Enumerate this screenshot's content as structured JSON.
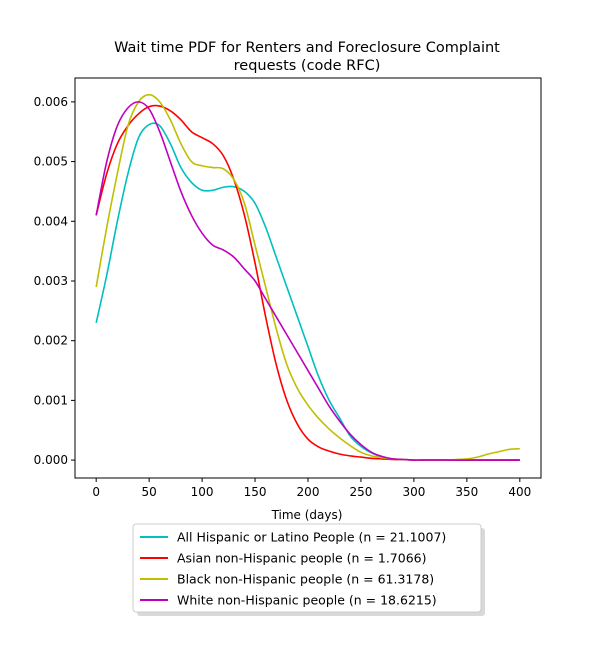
{
  "chart_data": {
    "type": "line",
    "title_line1": "Wait time PDF for Renters and Foreclosure Complaint",
    "title_line2": "requests (code RFC)",
    "xlabel": "Time (days)",
    "ylabel": "",
    "xlim": [
      -20,
      420
    ],
    "ylim": [
      -0.0003,
      0.0064
    ],
    "xticks": [
      0,
      50,
      100,
      150,
      200,
      250,
      300,
      350,
      400
    ],
    "yticks": [
      0.0,
      0.001,
      0.002,
      0.003,
      0.004,
      0.005,
      0.006
    ],
    "ytick_labels": [
      "0.000",
      "0.001",
      "0.002",
      "0.003",
      "0.004",
      "0.005",
      "0.006"
    ],
    "grid": false,
    "legend_position": "below plot",
    "x": [
      0,
      10,
      20,
      30,
      40,
      50,
      60,
      70,
      80,
      90,
      100,
      110,
      120,
      130,
      140,
      150,
      160,
      170,
      180,
      190,
      200,
      210,
      220,
      230,
      240,
      250,
      260,
      270,
      280,
      290,
      300,
      310,
      320,
      330,
      340,
      350,
      360,
      370,
      380,
      390,
      400
    ],
    "series": [
      {
        "name": "All Hispanic or Latino People (n = 21.1007)",
        "color": "#00bfbf",
        "values": [
          0.0023,
          0.0031,
          0.004,
          0.0048,
          0.0054,
          0.00562,
          0.0056,
          0.0053,
          0.0049,
          0.00465,
          0.00452,
          0.00452,
          0.00457,
          0.00458,
          0.0045,
          0.0043,
          0.0039,
          0.0034,
          0.0029,
          0.0024,
          0.0019,
          0.0014,
          0.001,
          0.0007,
          0.0004,
          0.00023,
          0.00012,
          5e-05,
          2e-05,
          1e-05,
          0.0,
          0.0,
          0.0,
          0.0,
          0.0,
          0.0,
          0.0,
          0.0,
          0.0,
          0.0,
          0.0
        ]
      },
      {
        "name": "Asian non-Hispanic people (n = 1.7066)",
        "color": "#ff0000",
        "values": [
          0.0041,
          0.0048,
          0.0053,
          0.0056,
          0.0058,
          0.00592,
          0.00593,
          0.00585,
          0.0057,
          0.0055,
          0.0054,
          0.0053,
          0.0051,
          0.0047,
          0.0041,
          0.0033,
          0.0024,
          0.0016,
          0.001,
          0.0006,
          0.00035,
          0.00022,
          0.00015,
          0.0001,
          7e-05,
          5e-05,
          3e-05,
          2e-05,
          1e-05,
          1e-05,
          0.0,
          0.0,
          0.0,
          0.0,
          0.0,
          0.0,
          0.0,
          0.0,
          0.0,
          0.0,
          0.0
        ]
      },
      {
        "name": "Black non-Hispanic people (n = 61.3178)",
        "color": "#bfbf00",
        "values": [
          0.0029,
          0.0039,
          0.0048,
          0.0056,
          0.006,
          0.00612,
          0.006,
          0.0057,
          0.0053,
          0.005,
          0.00493,
          0.0049,
          0.00488,
          0.0047,
          0.0043,
          0.0036,
          0.0029,
          0.0022,
          0.0016,
          0.0012,
          0.00092,
          0.0007,
          0.00052,
          0.00037,
          0.00024,
          0.00013,
          7e-05,
          4e-05,
          2e-05,
          1e-05,
          0.0,
          0.0,
          0.0,
          0.0,
          1e-05,
          2e-05,
          5e-05,
          0.0001,
          0.00014,
          0.00018,
          0.00019
        ]
      },
      {
        "name": "White non-Hispanic people (n = 18.6215)",
        "color": "#bf00bf",
        "values": [
          0.0041,
          0.005,
          0.0056,
          0.0059,
          0.006,
          0.00588,
          0.0055,
          0.005,
          0.0045,
          0.0041,
          0.0038,
          0.0036,
          0.00352,
          0.0034,
          0.0032,
          0.003,
          0.0027,
          0.0024,
          0.0021,
          0.0018,
          0.0015,
          0.0012,
          0.0009,
          0.00065,
          0.00043,
          0.00026,
          0.00013,
          6e-05,
          2e-05,
          1e-05,
          0.0,
          0.0,
          0.0,
          0.0,
          0.0,
          0.0,
          0.0,
          0.0,
          0.0,
          0.0,
          0.0
        ]
      }
    ]
  }
}
